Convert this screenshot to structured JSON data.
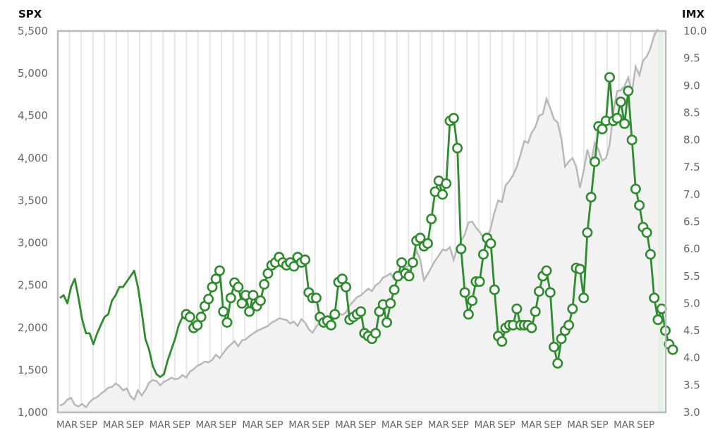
{
  "chart_data": {
    "type": "line",
    "left_axis_title": "SPX",
    "right_axis_title": "IMX",
    "left_ticks": [
      "1,000",
      "1,500",
      "2,000",
      "2,500",
      "3,000",
      "3,500",
      "4,000",
      "4,500",
      "5,000",
      "5,500"
    ],
    "right_ticks": [
      "3.0",
      "3.5",
      "4.0",
      "4.5",
      "5.0",
      "5.5",
      "6.0",
      "6.5",
      "7.0",
      "7.5",
      "8.0",
      "8.5",
      "9.0",
      "9.5",
      "10.0"
    ],
    "x_tick_labels": [
      "MAR",
      "SEP",
      "MAR",
      "SEP",
      "MAR",
      "SEP",
      "MAR",
      "SEP",
      "MAR",
      "SEP",
      "MAR",
      "SEP",
      "MAR",
      "SEP",
      "MAR",
      "SEP",
      "MAR",
      "SEP",
      "MAR",
      "SEP",
      "MAR",
      "SEP",
      "MAR",
      "SEP",
      "MAR",
      "SEP"
    ],
    "ylim_left": [
      1000,
      5500
    ],
    "ylim_right": [
      3.0,
      10.0
    ],
    "grid": true,
    "series": [
      {
        "name": "",
        "axis": "left",
        "color": "#b8b8b8",
        "fill": "#f2f2f2",
        "values": [
          1080,
          1100,
          1150,
          1170,
          1090,
          1070,
          1100,
          1060,
          1120,
          1160,
          1180,
          1220,
          1250,
          1290,
          1300,
          1340,
          1310,
          1260,
          1280,
          1190,
          1150,
          1260,
          1200,
          1260,
          1350,
          1380,
          1370,
          1320,
          1360,
          1380,
          1410,
          1390,
          1400,
          1440,
          1410,
          1480,
          1510,
          1550,
          1570,
          1600,
          1590,
          1620,
          1680,
          1640,
          1700,
          1760,
          1800,
          1840,
          1780,
          1850,
          1860,
          1900,
          1930,
          1960,
          1980,
          2000,
          2020,
          2060,
          2080,
          2110,
          2100,
          2090,
          2050,
          2070,
          2020,
          2100,
          2060,
          1980,
          1940,
          2010,
          2070,
          2100,
          2140,
          2130,
          2160,
          2170,
          2150,
          2180,
          2260,
          2310,
          2360,
          2380,
          2420,
          2460,
          2430,
          2500,
          2530,
          2590,
          2610,
          2640,
          2570,
          2600,
          2640,
          2710,
          2730,
          2780,
          2910,
          2800,
          2560,
          2630,
          2710,
          2790,
          2850,
          2920,
          2910,
          2950,
          2800,
          2940,
          3020,
          3100,
          3240,
          3250,
          3180,
          3130,
          3060,
          3030,
          3180,
          3360,
          3500,
          3480,
          3680,
          3730,
          3800,
          3900,
          4040,
          4200,
          4180,
          4300,
          4370,
          4500,
          4520,
          4700,
          4590,
          4460,
          4420,
          4230,
          3900,
          3960,
          4000,
          3900,
          3650,
          3850,
          4100,
          3950,
          4180,
          4100,
          3970,
          4000,
          4160,
          4550,
          4790,
          4800,
          4850,
          4950,
          4780,
          5080,
          4980,
          5150,
          5200,
          5300,
          5450,
          5520
        ]
      },
      {
        "name": "",
        "axis": "right",
        "color": "#2e8b2e",
        "values": [
          5.1,
          5.15,
          5.0,
          5.3,
          5.45,
          5.1,
          4.7,
          4.45,
          4.45,
          4.25,
          4.45,
          4.6,
          4.75,
          4.8,
          5.05,
          5.15,
          5.3,
          5.3,
          5.4,
          5.5,
          5.6,
          5.3,
          4.85,
          4.35,
          4.15,
          3.85,
          3.7,
          3.65,
          3.7,
          3.95,
          4.15,
          4.35,
          4.6,
          4.75,
          4.8,
          4.75,
          4.55,
          4.6,
          4.75,
          4.95,
          5.08,
          5.3,
          5.45,
          5.6,
          4.85,
          4.65,
          5.1,
          5.38,
          5.3,
          5.0,
          5.15,
          4.85,
          5.15,
          4.95,
          5.05,
          5.35,
          5.55,
          5.7,
          5.75,
          5.85,
          5.75,
          5.7,
          5.75,
          5.68,
          5.85,
          5.75,
          5.8,
          5.2,
          5.1,
          5.1,
          4.75,
          4.65,
          4.68,
          4.6,
          4.8,
          5.39,
          5.45,
          5.3,
          4.7,
          4.75,
          4.8,
          4.85,
          4.45,
          4.4,
          4.35,
          4.45,
          4.85,
          4.98,
          4.65,
          5.0,
          5.25,
          5.5,
          5.75,
          5.55,
          5.5,
          5.75,
          6.15,
          6.2,
          6.05,
          6.1,
          6.55,
          7.05,
          7.25,
          7.0,
          7.2,
          8.35,
          8.4,
          7.85,
          6.0,
          5.2,
          4.8,
          5.05,
          5.4,
          5.4,
          5.9,
          6.2,
          6.1,
          5.25,
          4.4,
          4.3,
          4.55,
          4.6,
          4.6,
          4.9,
          4.6,
          4.6,
          4.6,
          4.55,
          4.85,
          5.22,
          5.5,
          5.6,
          5.2,
          4.2,
          3.9,
          4.35,
          4.5,
          4.6,
          4.9,
          5.65,
          5.63,
          5.1,
          6.3,
          6.95,
          7.6,
          8.25,
          8.2,
          8.35,
          9.15,
          8.35,
          8.4,
          8.7,
          8.3,
          8.9,
          8.0,
          7.1,
          6.8,
          6.4,
          6.3,
          5.9,
          5.1,
          4.7,
          4.9,
          4.5,
          4.25,
          4.15
        ]
      }
    ],
    "marker_start_index": 34,
    "colors": {
      "axis": "#bbbbbb",
      "gridline": "#e6e6e6",
      "highlight_band": "#e3f1e3"
    }
  }
}
